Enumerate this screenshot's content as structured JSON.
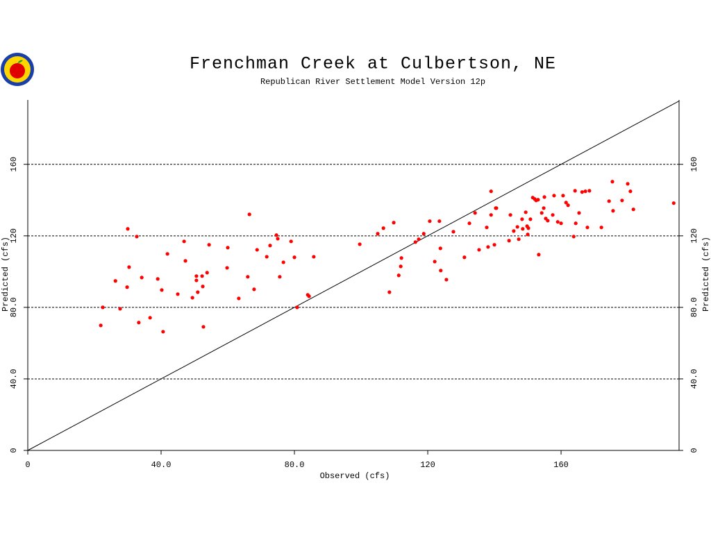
{
  "chart_data": {
    "type": "scatter",
    "title": "Frenchman Creek at Culbertson, NE",
    "subtitle": "Republican River Settlement Model Version 12p",
    "x_label": "Observed (cfs)",
    "y_label": "Predicted (cfs)",
    "color": "#ff0000",
    "grid": true,
    "xlim": [
      0,
      195.4
    ],
    "ylim": [
      0,
      196
    ],
    "xticks": [
      0,
      {
        "value": 40,
        "label": "40.0"
      },
      {
        "value": 80,
        "label": "80.0"
      },
      120,
      160
    ],
    "yticks": [
      0,
      {
        "value": 40,
        "label": "40.0"
      },
      {
        "value": 80,
        "label": "80.0"
      },
      120,
      160
    ],
    "x": [
      21.9,
      22.5,
      26.3,
      27.7,
      30.0,
      29.8,
      30.4,
      32.7,
      33.3,
      34.2,
      36.7,
      39.0,
      40.2,
      40.6,
      41.9,
      45.0,
      46.9,
      47.3,
      49.4,
      50.6,
      50.6,
      51.0,
      52.3,
      52.5,
      52.7,
      53.8,
      54.4,
      59.8,
      60.0,
      63.3,
      66.0,
      66.5,
      67.9,
      68.8,
      71.7,
      72.7,
      74.6,
      75.0,
      75.6,
      76.7,
      79.0,
      80.0,
      80.8,
      84.0,
      84.4,
      85.8,
      99.6,
      105.0,
      106.7,
      108.5,
      109.8,
      111.3,
      111.9,
      112.1,
      116.3,
      117.3,
      118.8,
      120.6,
      122.1,
      123.5,
      123.8,
      123.9,
      125.6,
      127.7,
      131.0,
      132.5,
      134.2,
      135.4,
      137.7,
      138.1,
      139.0,
      139.0,
      140.0,
      140.4,
      140.6,
      144.4,
      144.8,
      145.8,
      146.9,
      147.3,
      148.3,
      148.5,
      149.4,
      149.8,
      150.0,
      150.2,
      150.8,
      151.5,
      152.1,
      152.5,
      153.1,
      153.3,
      154.2,
      154.8,
      155.0,
      155.4,
      156.0,
      157.5,
      157.9,
      159.0,
      160.0,
      160.6,
      161.5,
      162.1,
      163.8,
      164.2,
      164.4,
      165.4,
      166.3,
      167.3,
      167.9,
      168.5,
      172.1,
      174.4,
      175.4,
      175.6,
      178.3,
      180.0,
      180.8,
      181.7,
      193.8
    ],
    "values": [
      69.9,
      80.0,
      94.8,
      79.2,
      123.9,
      91.3,
      102.5,
      119.6,
      71.5,
      96.7,
      74.2,
      95.9,
      89.7,
      66.4,
      109.9,
      87.4,
      116.9,
      106.0,
      85.4,
      95.1,
      97.5,
      88.5,
      97.5,
      91.7,
      69.1,
      99.4,
      115.0,
      102.1,
      113.4,
      85.0,
      97.1,
      132.0,
      90.1,
      112.2,
      108.3,
      114.6,
      120.4,
      118.4,
      97.1,
      105.2,
      116.9,
      108.0,
      80.0,
      87.0,
      86.2,
      108.3,
      115.3,
      121.2,
      124.3,
      88.5,
      127.4,
      97.9,
      102.9,
      107.6,
      116.5,
      118.1,
      121.2,
      128.2,
      105.6,
      128.2,
      113.0,
      100.6,
      95.5,
      122.3,
      108.0,
      127.0,
      132.8,
      112.2,
      124.7,
      113.8,
      131.7,
      144.9,
      115.0,
      135.5,
      135.5,
      117.3,
      131.7,
      122.7,
      125.0,
      118.1,
      129.3,
      123.9,
      133.2,
      125.4,
      120.8,
      124.3,
      129.3,
      141.4,
      140.6,
      139.8,
      140.2,
      109.5,
      132.8,
      135.5,
      141.7,
      129.7,
      128.5,
      131.7,
      142.5,
      127.8,
      127.0,
      142.5,
      138.6,
      137.1,
      119.6,
      145.2,
      127.0,
      132.8,
      144.5,
      144.9,
      124.7,
      145.2,
      124.7,
      139.4,
      150.3,
      134.0,
      139.8,
      149.1,
      144.9,
      134.8,
      138.3
    ]
  }
}
